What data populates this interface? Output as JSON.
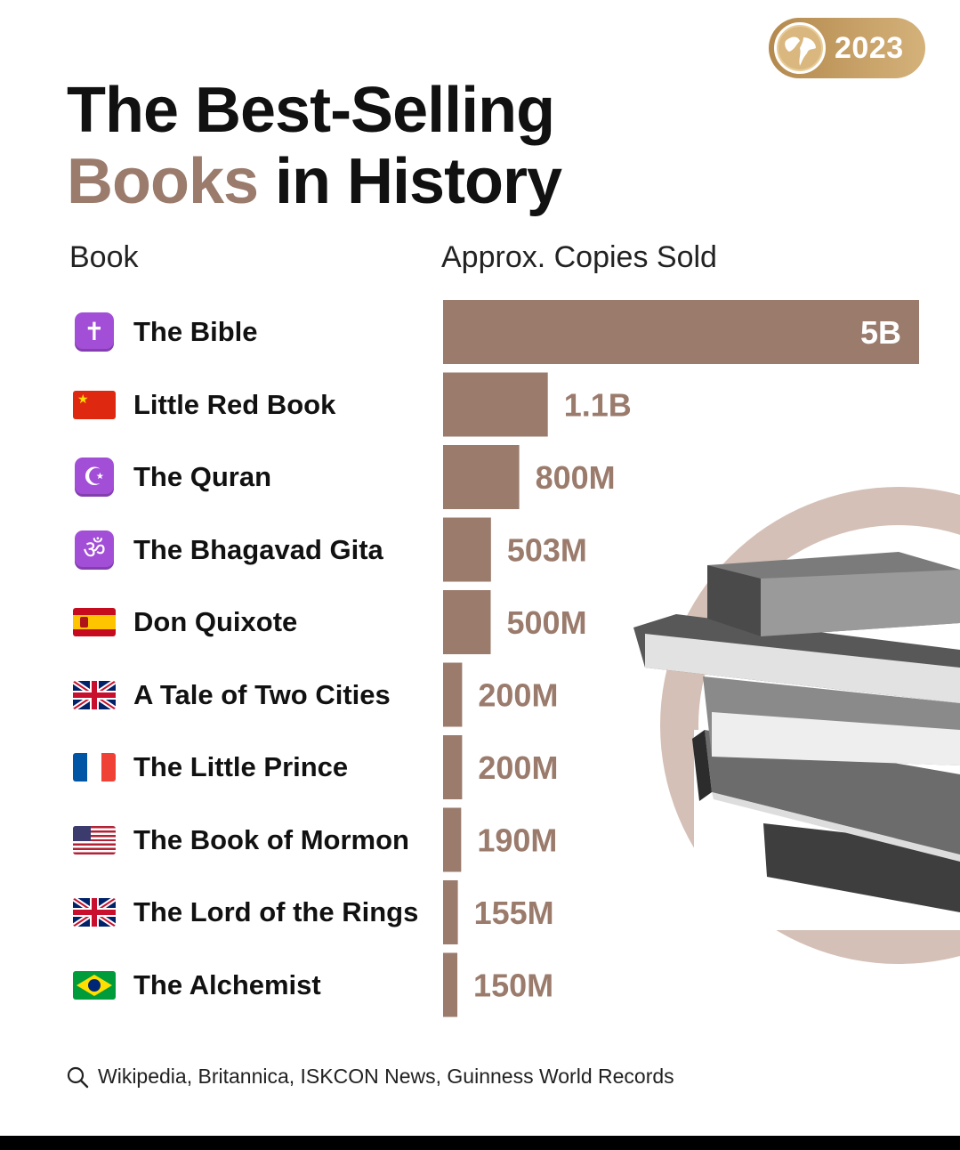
{
  "badge": {
    "year": "2023",
    "icon": "globe-icon"
  },
  "title": {
    "line1": "The Best-Selling",
    "accent": "Books",
    "rest": " in History"
  },
  "headers": {
    "book": "Book",
    "copies": "Approx. Copies Sold"
  },
  "source": {
    "icon": "search-icon",
    "text": "Wikipedia, Britannica, ISKCON News, Guinness World Records"
  },
  "colors": {
    "bar": "#9a7b6c",
    "accent": "#9a7b6c",
    "badge": "#c49f62",
    "deco_circle": "#d4c0b7"
  },
  "chart_data": {
    "type": "bar",
    "orientation": "horizontal",
    "categories": [
      "The Bible",
      "Little Red Book",
      "The Quran",
      "The Bhagavad Gita",
      "Don Quixote",
      "A Tale of Two Cities",
      "The Little Prince",
      "The Book of Mormon",
      "The Lord of the Rings",
      "The Alchemist"
    ],
    "values": [
      5000,
      1100,
      800,
      503,
      500,
      200,
      200,
      190,
      155,
      150
    ],
    "value_labels": [
      "5B",
      "1.1B",
      "800M",
      "503M",
      "500M",
      "200M",
      "200M",
      "190M",
      "155M",
      "150M"
    ],
    "unit": "million copies",
    "icons": [
      "cross-icon",
      "china-flag-icon",
      "crescent-star-icon",
      "om-icon",
      "spain-flag-icon",
      "uk-flag-icon",
      "france-flag-icon",
      "usa-flag-icon",
      "uk-flag-icon",
      "brazil-flag-icon"
    ],
    "title": "The Best-Selling Books in History",
    "xlabel": "Approx. Copies Sold",
    "ylabel": "Book",
    "xlim": [
      0,
      5000
    ],
    "grid": false,
    "legend": "none"
  }
}
